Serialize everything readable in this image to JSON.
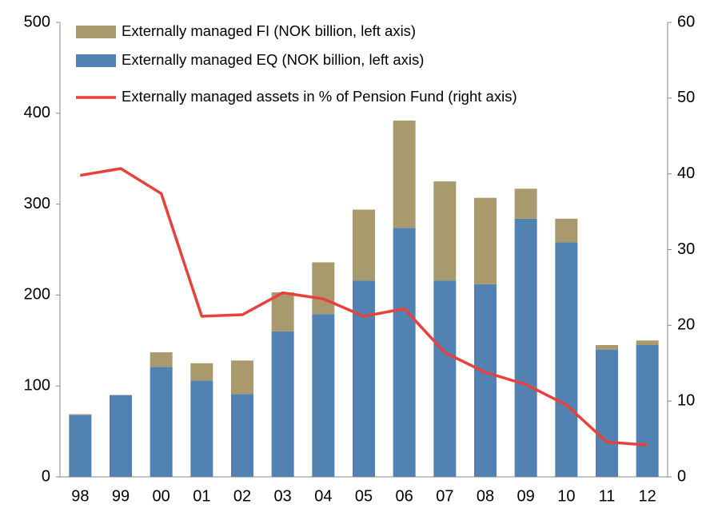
{
  "chart_data": {
    "type": "bar",
    "categories": [
      "98",
      "99",
      "00",
      "01",
      "02",
      "03",
      "04",
      "05",
      "06",
      "07",
      "08",
      "09",
      "10",
      "11",
      "12"
    ],
    "series": [
      {
        "name": "Externally managed FI (NOK billion, left axis)",
        "type": "bar",
        "color": "#a99a6e",
        "values": [
          1,
          0,
          16,
          19,
          37,
          43,
          57,
          78,
          118,
          109,
          95,
          33,
          26,
          5,
          5
        ]
      },
      {
        "name": "Externally managed EQ (NOK billion, left axis)",
        "type": "bar",
        "color": "#5282b2",
        "values": [
          68,
          90,
          121,
          106,
          91,
          160,
          179,
          216,
          274,
          216,
          212,
          284,
          258,
          140,
          145
        ]
      },
      {
        "name": "Externally managed assets in % of Pension Fund (right axis)",
        "type": "line",
        "axis": "y2",
        "color": "#e8413c",
        "values": [
          39.8,
          40.7,
          37.4,
          21.2,
          21.4,
          24.3,
          23.5,
          21.2,
          22.2,
          16.4,
          13.8,
          12.2,
          9.5,
          4.6,
          4.2
        ]
      }
    ],
    "ylim": [
      0,
      500
    ],
    "yticks": [
      0,
      100,
      200,
      300,
      400,
      500
    ],
    "y2lim": [
      0,
      60
    ],
    "y2ticks": [
      0,
      10,
      20,
      30,
      40,
      50,
      60
    ],
    "stacked": true,
    "grid": false,
    "legend": "top-left"
  }
}
